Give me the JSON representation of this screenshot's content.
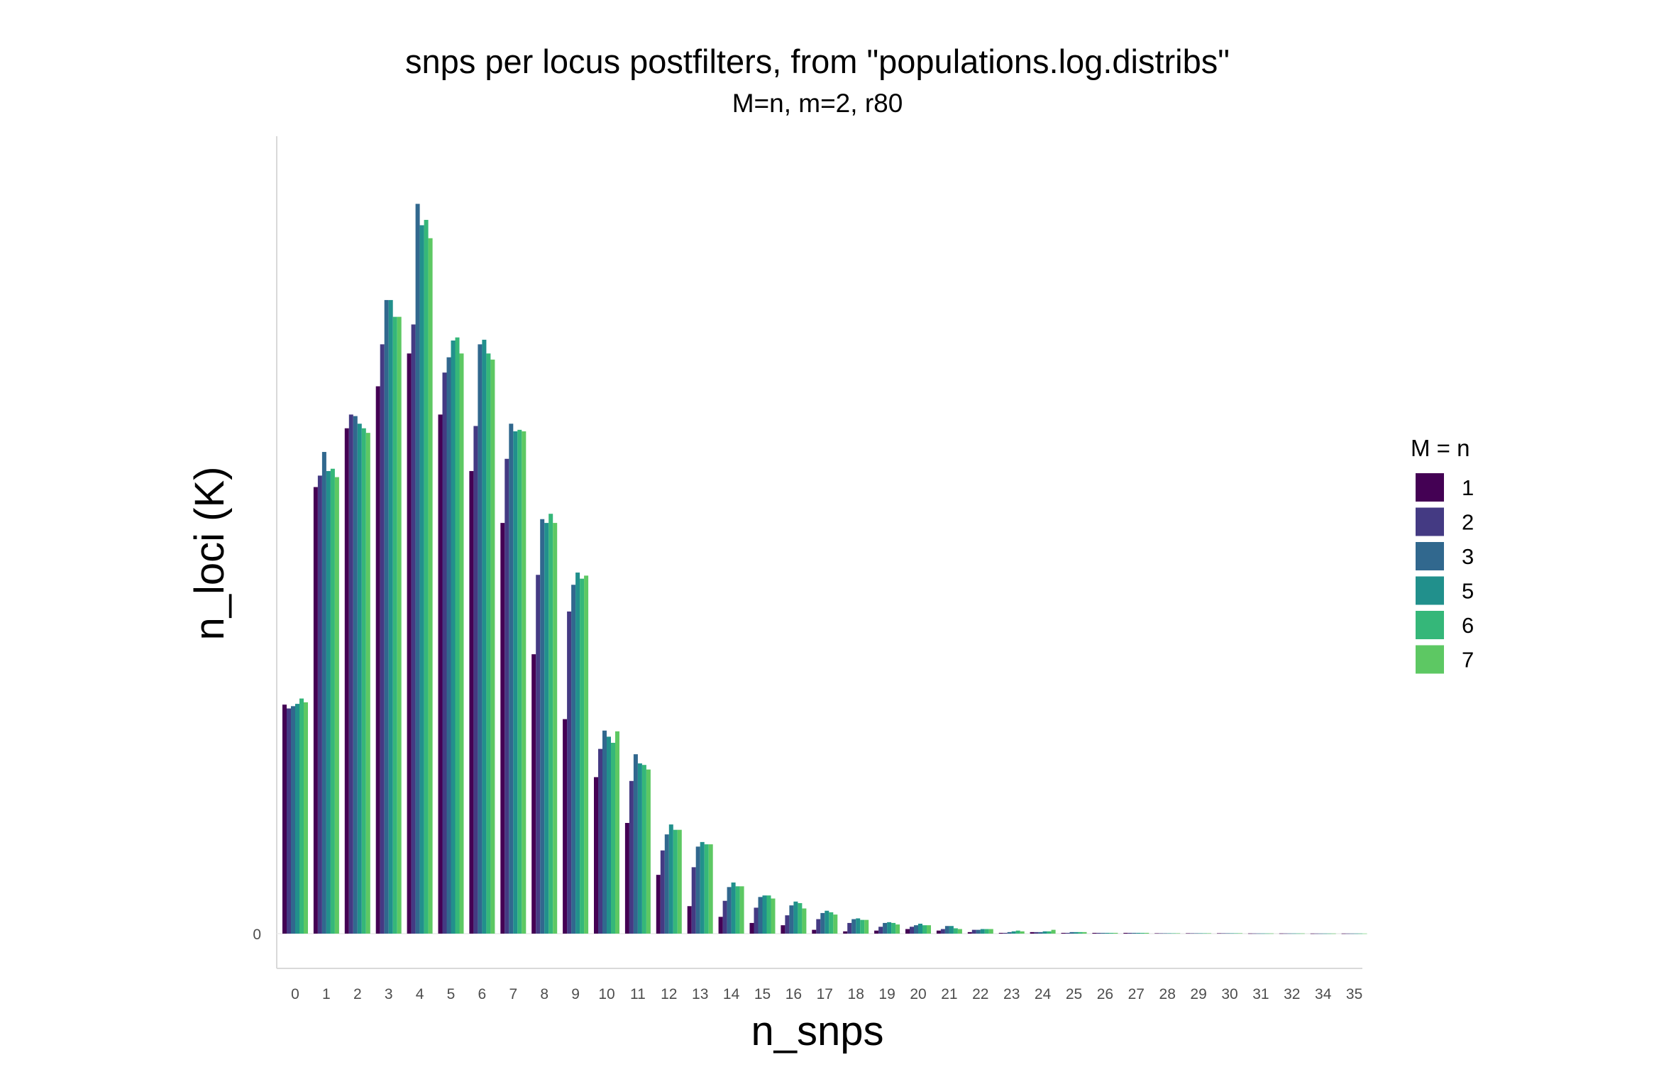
{
  "chart_data": {
    "type": "bar",
    "title": "snps per locus postfilters, from \"populations.log.distribs\"",
    "subtitle": "M=n, m=2, r80",
    "xlabel": "n_snps",
    "ylabel": "n_loci (K)",
    "y_tick_labels": [
      "0"
    ],
    "grid": false,
    "legend_position": "right",
    "legend_title": "M = n",
    "categories": [
      "0",
      "1",
      "2",
      "3",
      "4",
      "5",
      "6",
      "7",
      "8",
      "9",
      "10",
      "11",
      "12",
      "13",
      "14",
      "15",
      "16",
      "17",
      "18",
      "19",
      "20",
      "21",
      "22",
      "23",
      "24",
      "25",
      "26",
      "27",
      "28",
      "29",
      "30",
      "31",
      "32",
      "34",
      "35"
    ],
    "series": [
      {
        "name": "1",
        "color": "#440154",
        "values": [
          0.3,
          0.585,
          0.662,
          0.717,
          0.76,
          0.68,
          0.606,
          0.538,
          0.366,
          0.281,
          0.205,
          0.145,
          0.077,
          0.036,
          0.022,
          0.014,
          0.011,
          0.005,
          0.003,
          0.004,
          0.006,
          0.004,
          0.002,
          0.001,
          0.002,
          0.001,
          0.001,
          0.001,
          0.0005,
          0.0005,
          0.0005,
          0.0003,
          0.0003,
          0.0002,
          0.0002
        ]
      },
      {
        "name": "2",
        "color": "#443A83",
        "values": [
          0.295,
          0.6,
          0.68,
          0.772,
          0.798,
          0.735,
          0.665,
          0.622,
          0.47,
          0.422,
          0.242,
          0.2,
          0.109,
          0.087,
          0.043,
          0.034,
          0.024,
          0.019,
          0.014,
          0.009,
          0.009,
          0.006,
          0.005,
          0.001,
          0.002,
          0.001,
          0.001,
          0.001,
          0.0005,
          0.0005,
          0.0005,
          0.0003,
          0.0003,
          0.0002,
          0.0002
        ]
      },
      {
        "name": "3",
        "color": "#31688E",
        "values": [
          0.298,
          0.631,
          0.678,
          0.83,
          0.956,
          0.755,
          0.772,
          0.668,
          0.543,
          0.457,
          0.266,
          0.235,
          0.13,
          0.114,
          0.061,
          0.048,
          0.037,
          0.027,
          0.019,
          0.014,
          0.011,
          0.01,
          0.005,
          0.002,
          0.002,
          0.002,
          0.001,
          0.001,
          0.0005,
          0.0005,
          0.0005,
          0.0003,
          0.0003,
          0.0002,
          0.0002
        ]
      },
      {
        "name": "5",
        "color": "#21908C",
        "values": [
          0.301,
          0.606,
          0.668,
          0.83,
          0.928,
          0.777,
          0.778,
          0.658,
          0.538,
          0.473,
          0.258,
          0.223,
          0.143,
          0.12,
          0.067,
          0.05,
          0.042,
          0.03,
          0.02,
          0.015,
          0.013,
          0.01,
          0.006,
          0.003,
          0.003,
          0.002,
          0.001,
          0.001,
          0.0005,
          0.0005,
          0.0005,
          0.0003,
          0.0003,
          0.0002,
          0.0002
        ]
      },
      {
        "name": "6",
        "color": "#35B779",
        "values": [
          0.308,
          0.609,
          0.662,
          0.808,
          0.935,
          0.781,
          0.76,
          0.66,
          0.55,
          0.465,
          0.25,
          0.221,
          0.136,
          0.117,
          0.062,
          0.05,
          0.04,
          0.028,
          0.018,
          0.014,
          0.011,
          0.007,
          0.006,
          0.004,
          0.003,
          0.002,
          0.001,
          0.001,
          0.0005,
          0.0005,
          0.0005,
          0.0003,
          0.0003,
          0.0002,
          0.0002
        ]
      },
      {
        "name": "7",
        "color": "#5DC863",
        "values": [
          0.303,
          0.598,
          0.656,
          0.808,
          0.911,
          0.76,
          0.752,
          0.658,
          0.538,
          0.469,
          0.265,
          0.215,
          0.136,
          0.117,
          0.062,
          0.046,
          0.033,
          0.025,
          0.018,
          0.012,
          0.011,
          0.006,
          0.006,
          0.003,
          0.005,
          0.002,
          0.001,
          0.001,
          0.0005,
          0.0005,
          0.0005,
          0.0003,
          0.0003,
          0.0002,
          0.0002
        ]
      }
    ]
  }
}
